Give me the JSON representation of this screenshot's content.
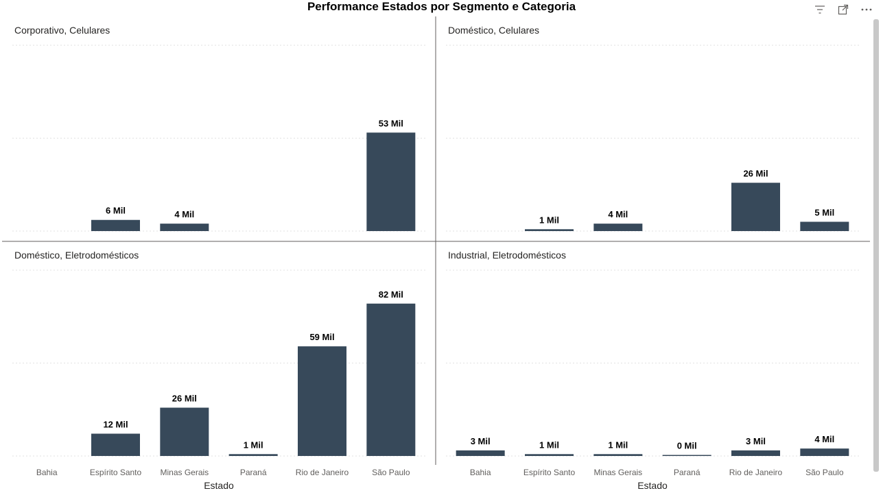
{
  "chart_data": {
    "type": "bar",
    "title": "Performance Estados por Segmento e Categoria",
    "xlabel": "Estado",
    "ylabel": "",
    "grid": true,
    "bar_color": "#37495A",
    "categories": [
      "Bahia",
      "Espírito Santo",
      "Minas Gerais",
      "Paraná",
      "Rio de Janeiro",
      "São Paulo"
    ],
    "panels": [
      {
        "name": "Corporativo, Celulares",
        "values": [
          null,
          6,
          4,
          null,
          null,
          53
        ],
        "labels": [
          "",
          "6 Mil",
          "4 Mil",
          "",
          "",
          "53 Mil"
        ],
        "ylim": [
          0,
          100
        ]
      },
      {
        "name": "Doméstico, Celulares",
        "values": [
          null,
          1,
          4,
          null,
          26,
          5
        ],
        "labels": [
          "",
          "1 Mil",
          "4 Mil",
          "",
          "26 Mil",
          "5 Mil"
        ],
        "ylim": [
          0,
          100
        ]
      },
      {
        "name": "Doméstico, Eletrodomésticos",
        "values": [
          null,
          12,
          26,
          1,
          59,
          82
        ],
        "labels": [
          "",
          "12 Mil",
          "26 Mil",
          "1 Mil",
          "59 Mil",
          "82 Mil"
        ],
        "ylim": [
          0,
          100
        ]
      },
      {
        "name": "Industrial, Eletrodomésticos",
        "values": [
          3,
          1,
          1,
          0.4,
          3,
          4
        ],
        "labels": [
          "3 Mil",
          "1 Mil",
          "1 Mil",
          "0 Mil",
          "3 Mil",
          "4 Mil"
        ],
        "ylim": [
          0,
          100
        ]
      }
    ]
  },
  "header_icons": [
    "filter-icon",
    "focus-mode-icon",
    "more-options-icon"
  ]
}
